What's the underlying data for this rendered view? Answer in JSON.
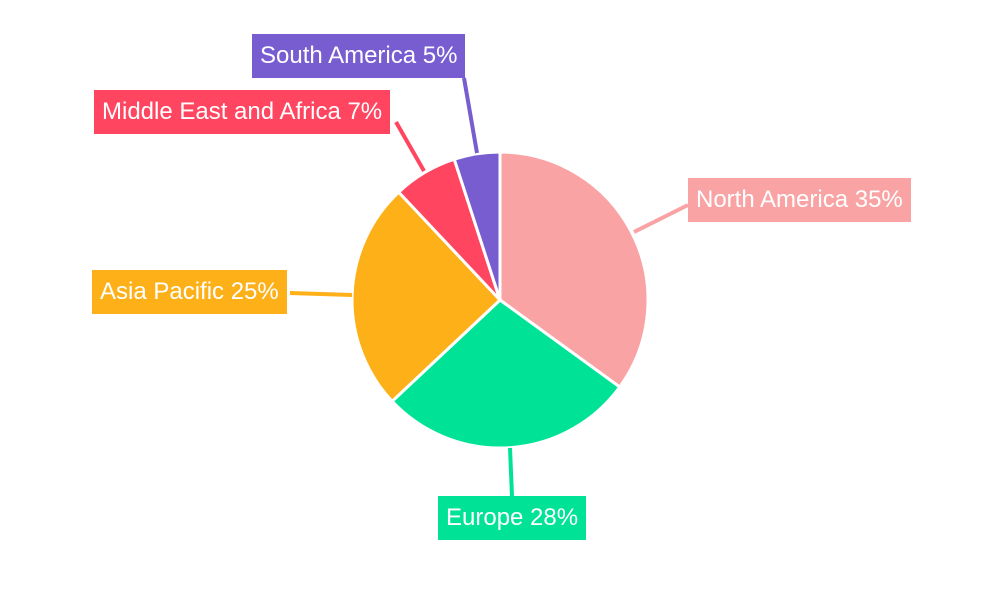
{
  "chart_data": {
    "type": "pie",
    "title": "",
    "start_angle": "top",
    "direction": "clockwise",
    "slices": [
      {
        "label": "North America 35%",
        "name": "North America",
        "value": 35,
        "color": "#F9A3A4"
      },
      {
        "label": "Europe 28%",
        "name": "Europe",
        "value": 28,
        "color": "#00E396"
      },
      {
        "label": "Asia Pacific 25%",
        "name": "Asia Pacific",
        "value": 25,
        "color": "#FEB019"
      },
      {
        "label": "Middle East and Africa 7%",
        "name": "Middle East and Africa",
        "value": 7,
        "color": "#FF4560"
      },
      {
        "label": "South America 5%",
        "name": "South America",
        "value": 5,
        "color": "#775DD0"
      }
    ]
  }
}
